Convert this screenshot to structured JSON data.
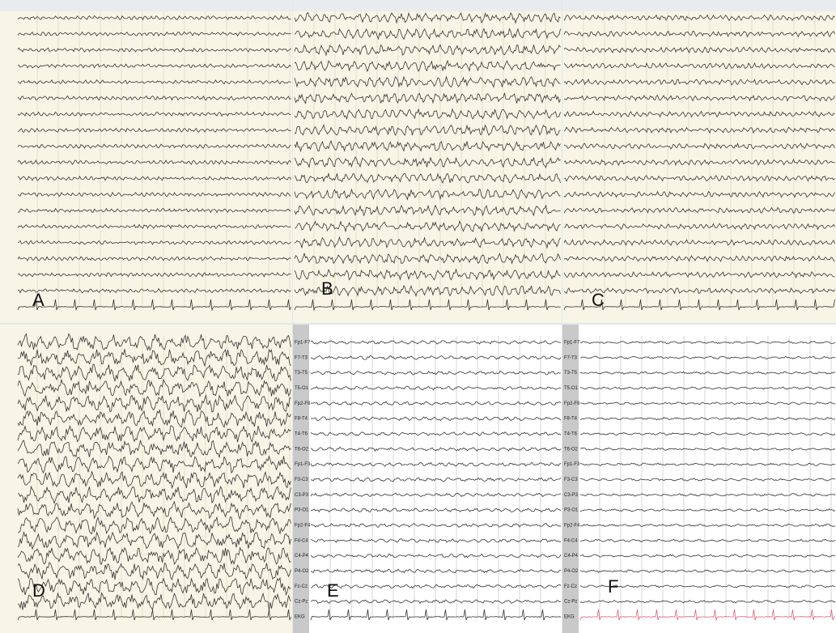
{
  "panels": [
    {
      "label": "A"
    },
    {
      "label": "B"
    },
    {
      "label": "C"
    },
    {
      "label": "D"
    },
    {
      "label": "E",
      "channels": [
        "Fp1-F7",
        "F7-T3",
        "T3-T5",
        "T5-O1",
        "Fp2-F8",
        "F8-T4",
        "T4-T6",
        "T6-O2",
        "Fp1-F3",
        "F3-C3",
        "C3-P3",
        "P3-O1",
        "Fp2-F4",
        "F4-C4",
        "C4-P4",
        "P4-O2",
        "Fz-Cz",
        "Cz-Pz",
        "EKG"
      ]
    },
    {
      "label": "F",
      "channels": [
        "Fp1-F7",
        "F7-T3",
        "T3-T5",
        "T5-O1",
        "Fp2-F8",
        "F8-T4",
        "T4-T6",
        "T6-O2",
        "Fp1-F3",
        "F3-C3",
        "C3-P3",
        "P3-O1",
        "Fp2-F4",
        "F4-C4",
        "C4-P4",
        "P4-O2",
        "Fz-Cz",
        "Cz-Pz",
        "EKG"
      ]
    }
  ]
}
